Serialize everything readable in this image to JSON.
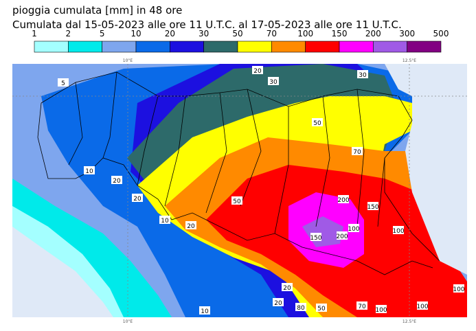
{
  "header": {
    "title": "pioggia cumulata [mm] in 48 ore",
    "subtitle": "Cumulata dal 15-05-2023 alle ore 11 U.T.C. al 17-05-2023 alle ore 11 U.T.C."
  },
  "legend": {
    "labels": [
      "1",
      "2",
      "5",
      "10",
      "20",
      "30",
      "50",
      "70",
      "100",
      "150",
      "200",
      "300",
      "500"
    ],
    "colors": [
      "#a4ffff",
      "#00eaea",
      "#7ea6ee",
      "#0a6ae8",
      "#1c10e0",
      "#2d6a6a",
      "#ffff00",
      "#ff8a00",
      "#ff0000",
      "#ff00ff",
      "#a05ae6",
      "#820082"
    ]
  },
  "map": {
    "longitudes": [
      "10°E",
      "12.5°E"
    ],
    "contour_labels": [
      "5",
      "10",
      "20",
      "20",
      "30",
      "20",
      "30",
      "50",
      "70",
      "10",
      "20",
      "50",
      "100",
      "150",
      "200",
      "200",
      "150",
      "100",
      "100",
      "100",
      "50",
      "20",
      "20",
      "10",
      "80",
      "70",
      "100"
    ]
  }
}
